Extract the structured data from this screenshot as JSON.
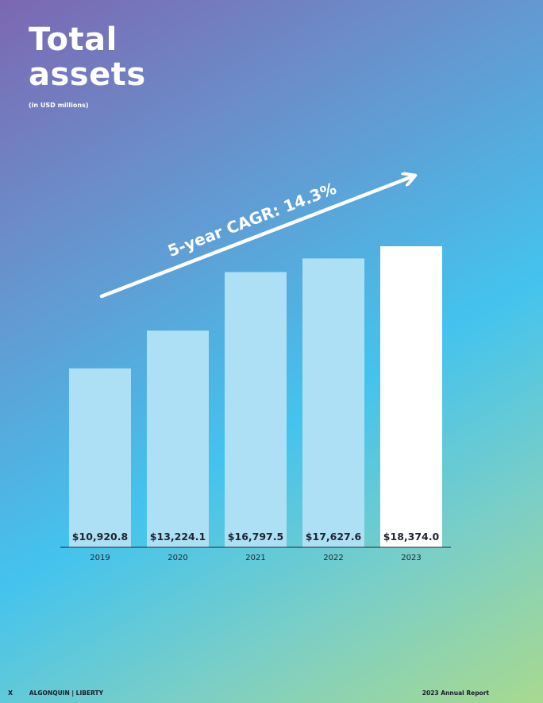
{
  "page": {
    "title": "Total assets",
    "subtitle": "(in USD millions)",
    "cagr_label": "5-year CAGR: 14.3%",
    "footer": {
      "page_marker": "X",
      "brand": "ALGONQUIN | LIBERTY",
      "report": "2023 Annual Report"
    }
  },
  "chart_data": {
    "type": "bar",
    "title": "Total assets",
    "subtitle": "(in USD millions)",
    "categories": [
      "2019",
      "2020",
      "2021",
      "2022",
      "2023"
    ],
    "values": [
      10920.8,
      13224.1,
      16797.5,
      17627.6,
      18374.0
    ],
    "data_labels": [
      "$10,920.8",
      "$13,224.1",
      "$16,797.5",
      "$17,627.6",
      "$18,374.0"
    ],
    "annotation": "5-year CAGR: 14.3%",
    "ylim": [
      0,
      18374.0
    ],
    "grid": false,
    "legend": "none",
    "colors": {
      "bar": "#ade0f5",
      "highlight_bar": "#ffffff",
      "label": "#1f2430",
      "axis": "#1f2430",
      "arrow": "#ffffff"
    }
  }
}
